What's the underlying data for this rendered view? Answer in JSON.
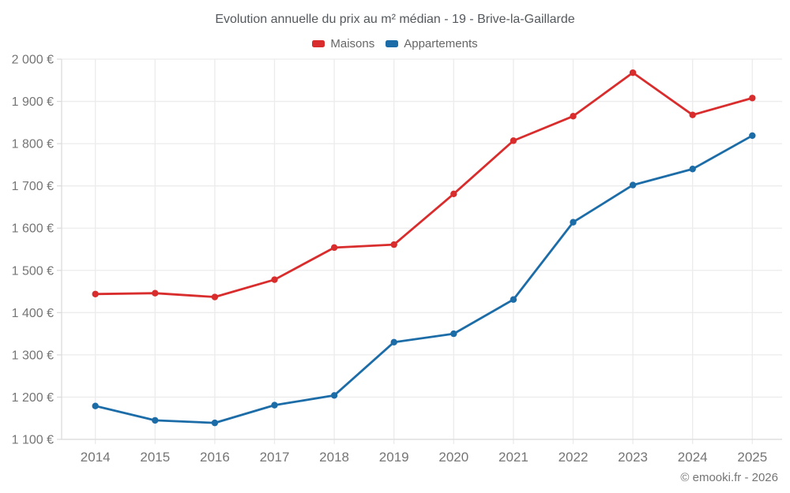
{
  "title": "Evolution annuelle du prix au m² médian - 19 - Brive-la-Gaillarde",
  "legend": {
    "items": [
      {
        "label": "Maisons",
        "color": "#d92c2c"
      },
      {
        "label": "Appartements",
        "color": "#1c6ca8"
      }
    ]
  },
  "footer": {
    "credit": "© emooki.fr - 2026"
  },
  "chart_data": {
    "type": "line",
    "title": "Evolution annuelle du prix au m² médian - 19 - Brive-la-Gaillarde",
    "x": [
      "2014",
      "2015",
      "2016",
      "2017",
      "2018",
      "2019",
      "2020",
      "2021",
      "2022",
      "2023",
      "2024",
      "2025"
    ],
    "series": [
      {
        "name": "Maisons",
        "color": "#d92c2c",
        "values": [
          1444,
          1446,
          1437,
          1478,
          1554,
          1561,
          1681,
          1807,
          1865,
          1968,
          1868,
          1908
        ]
      },
      {
        "name": "Appartements",
        "color": "#1c6ca8",
        "values": [
          1179,
          1145,
          1139,
          1181,
          1204,
          1330,
          1350,
          1431,
          1614,
          1702,
          1740,
          1819
        ]
      }
    ],
    "xlabel": "",
    "ylabel": "",
    "ylim": [
      1100,
      2000
    ],
    "y_tick_step": 100,
    "y_tick_values": [
      2000,
      1900,
      1800,
      1700,
      1600,
      1500,
      1400,
      1300,
      1200,
      1100
    ],
    "y_tick_labels": [
      "2 000 €",
      "1 900 €",
      "1 800 €",
      "1 700 €",
      "1 600 €",
      "1 500 €",
      "1 400 €",
      "1 300 €",
      "1 200 €",
      "1 100 €"
    ],
    "grid": true,
    "legend_position": "top",
    "colors": {
      "grid_line": "#ececec",
      "axis_line": "#dcdcdc",
      "tick_label": "#757575",
      "title_text": "#54595d",
      "legend_text": "#666666",
      "background": "#ffffff"
    }
  }
}
